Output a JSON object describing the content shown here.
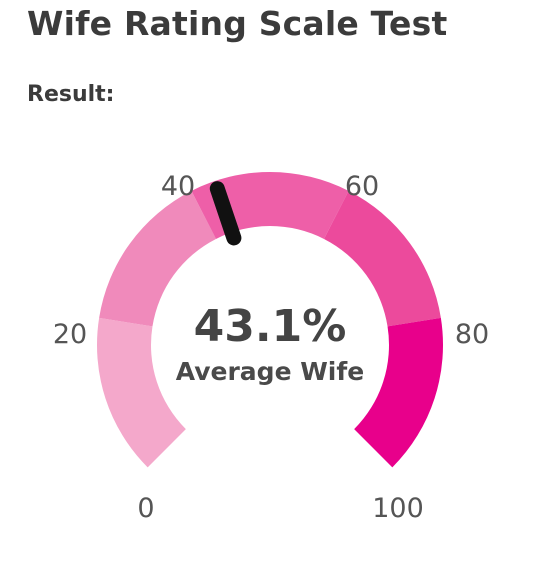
{
  "title": "Wife Rating Scale Test",
  "result_label": "Result:",
  "gauge": {
    "value": 43.1,
    "value_text": "43.1%",
    "caption": "Average Wife",
    "min": 0,
    "max": 100,
    "ticks": [
      "0",
      "20",
      "40",
      "60",
      "80",
      "100"
    ],
    "segment_colors": [
      "#f4a8cb",
      "#f08abb",
      "#ee5fa8",
      "#ec4a9c",
      "#e8008b"
    ],
    "needle_color": "#111111"
  }
}
